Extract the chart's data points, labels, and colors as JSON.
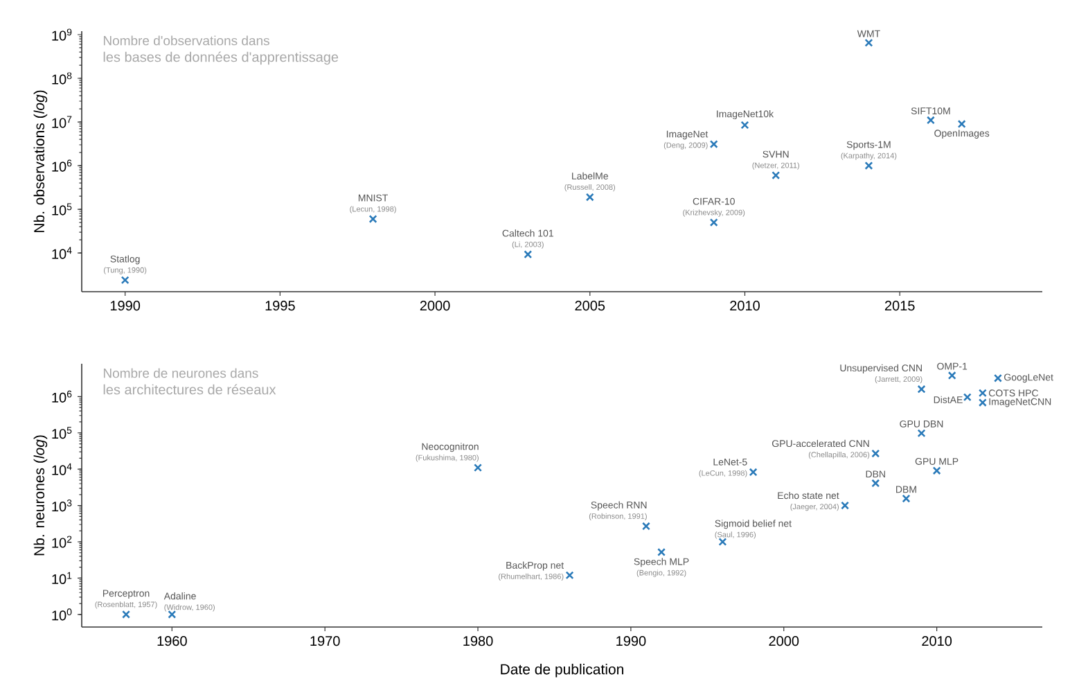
{
  "chart_data": [
    {
      "type": "scatter",
      "title": "Nombre d'observations dans",
      "subtitle": "les bases de données d'apprentissage",
      "ylabel": "Nb. observations (*log*)",
      "log": "y",
      "marker": "cross",
      "grid": false,
      "xlim": [
        1988.6,
        2019.6
      ],
      "ylim": [
        1300,
        1200000000
      ],
      "xticks": [
        1990,
        1995,
        2000,
        2005,
        2010,
        2015
      ],
      "yticks": [
        {
          "value": 10000,
          "label": "10$^{4}$"
        },
        {
          "value": 100000,
          "label": "10$^{5}$"
        },
        {
          "value": 1000000,
          "label": "10$^{6}$"
        },
        {
          "value": 10000000,
          "label": "10$^{7}$"
        },
        {
          "value": 100000000,
          "label": "10$^{8}$"
        },
        {
          "value": 1000000000,
          "label": "10$^{9}$"
        }
      ],
      "series": [
        {
          "color": "#2a7ab9",
          "x": [
            1990,
            1998,
            2003,
            2005,
            2009,
            2009,
            2010,
            2011,
            2014,
            2014,
            2016,
            2017
          ],
          "values": [
            2400,
            60000,
            9300,
            190000,
            3100000,
            50000,
            8500000,
            600000,
            650000000,
            1000000,
            11000000,
            9000000
          ]
        }
      ],
      "annotations": [
        {
          "text": "Statlog",
          "x": 1990,
          "y": 2400
        },
        {
          "text": "(Tung, 1990)",
          "x": 1990,
          "y": 2400
        },
        {
          "text": "MNIST",
          "x": 1998,
          "y": 60000
        },
        {
          "text": "(Lecun, 1998)",
          "x": 1998,
          "y": 60000
        },
        {
          "text": "Caltech 101",
          "x": 2003,
          "y": 9300
        },
        {
          "text": "(Li, 2003)",
          "x": 2003,
          "y": 9300
        },
        {
          "text": "LabelMe",
          "x": 2005,
          "y": 190000
        },
        {
          "text": "(Russell, 2008)",
          "x": 2005,
          "y": 190000
        },
        {
          "text": "ImageNet",
          "x": 2009,
          "y": 3100000
        },
        {
          "text": "(Deng, 2009)",
          "x": 2009,
          "y": 3100000
        },
        {
          "text": "CIFAR-10",
          "x": 2009,
          "y": 50000
        },
        {
          "text": "(Krizhevsky, 2009)",
          "x": 2009,
          "y": 50000
        },
        {
          "text": "ImageNet10k",
          "x": 2010,
          "y": 8500000
        },
        {
          "text": "SVHN",
          "x": 2011,
          "y": 600000
        },
        {
          "text": "(Netzer, 2011)",
          "x": 2011,
          "y": 600000
        },
        {
          "text": "WMT",
          "x": 2014,
          "y": 650000000
        },
        {
          "text": "Sports-1M",
          "x": 2014,
          "y": 1000000
        },
        {
          "text": "(Karpathy, 2014)",
          "x": 2014,
          "y": 1000000
        },
        {
          "text": "SIFT10M",
          "x": 2016,
          "y": 11000000
        },
        {
          "text": "OpenImages",
          "x": 2017,
          "y": 9000000
        }
      ]
    },
    {
      "type": "scatter",
      "title": "Nombre de neurones dans",
      "subtitle": "les architectures de réseaux",
      "ylabel": "Nb. neurones (*log*)",
      "xlabel": "Date de publication",
      "log": "y",
      "marker": "cross",
      "grid": false,
      "xlim": [
        1954.1,
        2016.9
      ],
      "ylim": [
        0.45,
        8000000
      ],
      "xticks": [
        1960,
        1970,
        1980,
        1990,
        2000,
        2010
      ],
      "yticks": [
        {
          "value": 1,
          "label": "10$^{0}$"
        },
        {
          "value": 10,
          "label": "10$^{1}$"
        },
        {
          "value": 100,
          "label": "10$^{2}$"
        },
        {
          "value": 1000,
          "label": "10$^{3}$"
        },
        {
          "value": 10000,
          "label": "10$^{4}$"
        },
        {
          "value": 100000,
          "label": "10$^{5}$"
        },
        {
          "value": 1000000,
          "label": "10$^{6}$"
        }
      ],
      "series": [
        {
          "color": "#2a7ab9",
          "x": [
            1957,
            1960,
            1980,
            1986,
            1991,
            1992,
            1996,
            1998,
            2004,
            2006,
            2006,
            2008,
            2009,
            2010,
            2009,
            2011,
            2012,
            2013,
            2013,
            2014
          ],
          "values": [
            1,
            1,
            11000,
            12,
            270,
            52,
            100,
            8300,
            1000,
            27000,
            4100,
            1550,
            98000,
            9100,
            1600000,
            3800000,
            960000,
            1250000,
            680000,
            3200000
          ]
        }
      ],
      "annotations": [
        {
          "text": "Perceptron",
          "x": 1957,
          "y": 1
        },
        {
          "text": "(Rosenblatt, 1957)",
          "x": 1957,
          "y": 1
        },
        {
          "text": "Adaline",
          "x": 1960,
          "y": 1
        },
        {
          "text": "(Widrow, 1960)",
          "x": 1960,
          "y": 1
        },
        {
          "text": "Neocognitron",
          "x": 1980,
          "y": 11000
        },
        {
          "text": "(Fukushima, 1980)",
          "x": 1980,
          "y": 11000
        },
        {
          "text": "BackProp net",
          "x": 1986,
          "y": 12
        },
        {
          "text": "(Rhumelhart, 1986)",
          "x": 1986,
          "y": 12
        },
        {
          "text": "Speech RNN",
          "x": 1991,
          "y": 270
        },
        {
          "text": "(Robinson, 1991)",
          "x": 1991,
          "y": 270
        },
        {
          "text": "Speech MLP",
          "x": 1992,
          "y": 52
        },
        {
          "text": "(Bengio, 1992)",
          "x": 1992,
          "y": 52
        },
        {
          "text": "Sigmoid belief net",
          "x": 1996,
          "y": 100
        },
        {
          "text": "(Saul, 1996)",
          "x": 1996,
          "y": 100
        },
        {
          "text": "LeNet-5",
          "x": 1998,
          "y": 8300
        },
        {
          "text": "(LeCun, 1998)",
          "x": 1998,
          "y": 8300
        },
        {
          "text": "Echo state net",
          "x": 2004,
          "y": 1000
        },
        {
          "text": "(Jaeger, 2004)",
          "x": 2004,
          "y": 1000
        },
        {
          "text": "GPU-accelerated CNN",
          "x": 2006,
          "y": 27000
        },
        {
          "text": "(Chellapilla, 2006)",
          "x": 2006,
          "y": 27000
        },
        {
          "text": "DBN",
          "x": 2006,
          "y": 4100
        },
        {
          "text": "DBM",
          "x": 2008,
          "y": 1550
        },
        {
          "text": "GPU DBN",
          "x": 2009,
          "y": 98000
        },
        {
          "text": "GPU MLP",
          "x": 2010,
          "y": 9100
        },
        {
          "text": "Unsupervised CNN",
          "x": 2009,
          "y": 1600000
        },
        {
          "text": "(Jarrett, 2009)",
          "x": 2009,
          "y": 1600000
        },
        {
          "text": "OMP-1",
          "x": 2011,
          "y": 3800000
        },
        {
          "text": "DistAE",
          "x": 2012,
          "y": 960000
        },
        {
          "text": "COTS HPC",
          "x": 2013,
          "y": 1250000
        },
        {
          "text": "ImageNetCNN",
          "x": 2013,
          "y": 680000
        },
        {
          "text": "GoogLeNet",
          "x": 2014,
          "y": 3200000
        }
      ]
    }
  ]
}
